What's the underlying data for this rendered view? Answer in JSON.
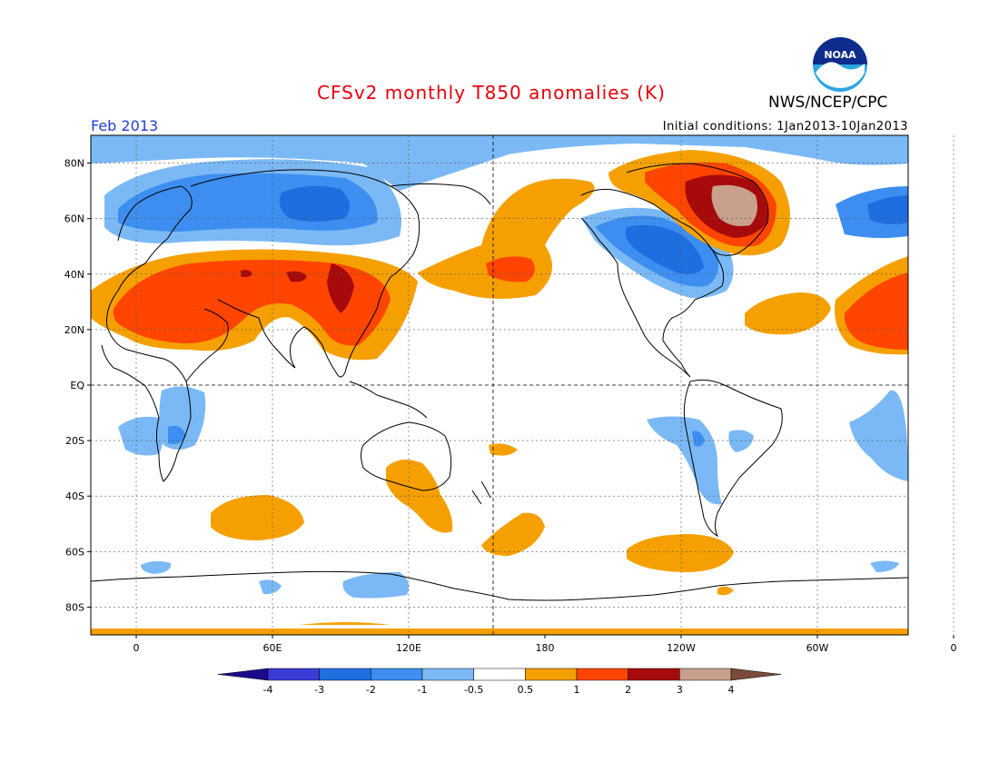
{
  "header": {
    "title": "CFSv2 monthly T850 anomalies (K)",
    "org": "NWS/NCEP/CPC",
    "month": "Feb 2013",
    "initial_conditions": "Initial conditions: 1Jan2013-10Jan2013",
    "logo_text": "NOAA",
    "logo_icon": "noaa-logo-icon"
  },
  "map": {
    "projection": "equirectangular",
    "lon_range": [
      -20,
      340
    ],
    "lat_range": [
      -90,
      90
    ],
    "lat_labels": [
      "80N",
      "60N",
      "40N",
      "20N",
      "EQ",
      "20S",
      "40S",
      "60S",
      "80S"
    ],
    "lat_values": [
      80,
      60,
      40,
      20,
      0,
      -20,
      -40,
      -60,
      -80
    ],
    "lon_labels": [
      "0",
      "60E",
      "120E",
      "180",
      "120W",
      "60W",
      "0"
    ],
    "lon_values": [
      0,
      60,
      120,
      180,
      240,
      300,
      360
    ]
  },
  "colorbar": {
    "levels": [
      "-4",
      "-3",
      "-2",
      "-1",
      "-0.5",
      "0.5",
      "1",
      "2",
      "3",
      "4"
    ],
    "colors": [
      "#1a0a8c",
      "#3a3ad6",
      "#1f6ee0",
      "#3d8ef0",
      "#7ab9f5",
      "#ffffff",
      "#f5a000",
      "#ff4500",
      "#a60a0a",
      "#c8a08c",
      "#7a4b3a"
    ]
  },
  "anomaly_colors": {
    "b2": "#1f6ee0",
    "b1": "#3d8ef0",
    "b05": "#7ab9f5",
    "r05": "#f5a000",
    "r1": "#ff4500",
    "r2": "#a60a0a",
    "r3": "#c8a08c"
  }
}
